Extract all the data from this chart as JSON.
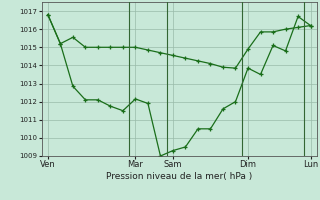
{
  "title": "Pression niveau de la mer( hPa )",
  "background_color": "#c8e8d8",
  "grid_color": "#99bbaa",
  "line_color": "#1a6e1a",
  "vline_color": "#336633",
  "xlim": [
    0,
    22
  ],
  "ylim": [
    1009,
    1017.5
  ],
  "yticks": [
    1009,
    1010,
    1011,
    1012,
    1013,
    1014,
    1015,
    1016,
    1017
  ],
  "xtick_labels": [
    "Ven",
    "Mar",
    "Sam",
    "Dim",
    "Lun"
  ],
  "xtick_positions": [
    0.5,
    7.5,
    10.5,
    16.5,
    21.5
  ],
  "vlines": [
    7.0,
    10.0,
    16.0,
    21.0
  ],
  "series1_x": [
    0.5,
    1.5,
    2.5,
    3.5,
    4.5,
    5.5,
    6.5,
    7.5,
    8.5,
    9.5,
    10.5,
    11.5,
    12.5,
    13.5,
    14.5,
    15.5,
    16.5,
    17.5,
    18.5,
    19.5,
    20.5,
    21.5
  ],
  "series1_y": [
    1016.8,
    1015.2,
    1015.55,
    1015.0,
    1015.0,
    1015.0,
    1015.0,
    1015.0,
    1014.85,
    1014.7,
    1014.55,
    1014.4,
    1014.25,
    1014.1,
    1013.9,
    1013.85,
    1014.9,
    1015.85,
    1015.85,
    1016.0,
    1016.1,
    1016.2
  ],
  "series2_x": [
    0.5,
    1.5,
    2.5,
    3.5,
    4.5,
    5.5,
    6.5,
    7.5,
    8.5,
    9.5,
    10.5,
    11.5,
    12.5,
    13.5,
    14.5,
    15.5,
    16.5,
    17.5,
    18.5,
    19.5,
    20.5,
    21.5
  ],
  "series2_y": [
    1016.8,
    1015.2,
    1012.85,
    1012.1,
    1012.1,
    1011.75,
    1011.5,
    1012.15,
    1011.9,
    1009.0,
    1009.3,
    1009.5,
    1010.5,
    1010.5,
    1011.6,
    1012.0,
    1013.85,
    1013.5,
    1015.1,
    1014.8,
    1016.7,
    1016.2
  ]
}
